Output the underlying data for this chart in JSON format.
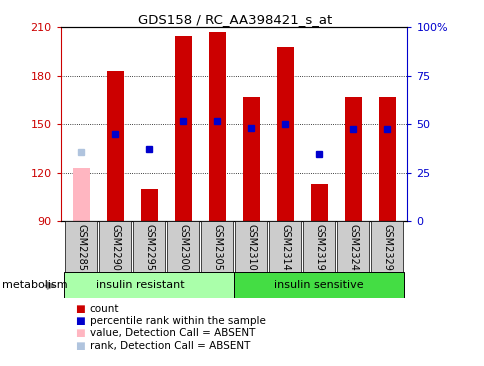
{
  "title": "GDS158 / RC_AA398421_s_at",
  "samples": [
    "GSM2285",
    "GSM2290",
    "GSM2295",
    "GSM2300",
    "GSM2305",
    "GSM2310",
    "GSM2314",
    "GSM2319",
    "GSM2324",
    "GSM2329"
  ],
  "bar_values": [
    123,
    183,
    110,
    205,
    207,
    167,
    198,
    113,
    167,
    167
  ],
  "bar_colors": [
    "#FFB6C1",
    "#CC0000",
    "#CC0000",
    "#CC0000",
    "#CC0000",
    "#CC0000",
    "#CC0000",
    "#CC0000",
    "#CC0000",
    "#CC0000"
  ],
  "absent_bar": [
    true,
    false,
    false,
    false,
    false,
    false,
    false,
    false,
    false,
    false
  ],
  "rank_values": [
    133,
    144,
    135,
    152,
    152,
    148,
    150,
    132,
    147,
    147
  ],
  "rank_absent": [
    true,
    false,
    false,
    false,
    false,
    false,
    false,
    false,
    false,
    false
  ],
  "ylim_left": [
    90,
    210
  ],
  "ylim_right": [
    0,
    100
  ],
  "yticks_left": [
    90,
    120,
    150,
    180,
    210
  ],
  "yticks_right": [
    0,
    25,
    50,
    75,
    100
  ],
  "grid_values": [
    120,
    150,
    180
  ],
  "group_labels": [
    "insulin resistant",
    "insulin sensitive"
  ],
  "group_split": 5,
  "group_color_left": "#AAFFAA",
  "group_color_right": "#44DD44",
  "bg_color": "#FFFFFF",
  "bar_width": 0.5,
  "left_tick_color": "#CC0000",
  "right_axis_label_color": "#0000CD",
  "legend_items": [
    {
      "label": "count",
      "color": "#CC0000"
    },
    {
      "label": "percentile rank within the sample",
      "color": "#0000CC"
    },
    {
      "label": "value, Detection Call = ABSENT",
      "color": "#FFB6C1"
    },
    {
      "label": "rank, Detection Call = ABSENT",
      "color": "#B0C4DE"
    }
  ],
  "metabolism_label": "metabolism",
  "sample_col_color": "#CCCCCC"
}
